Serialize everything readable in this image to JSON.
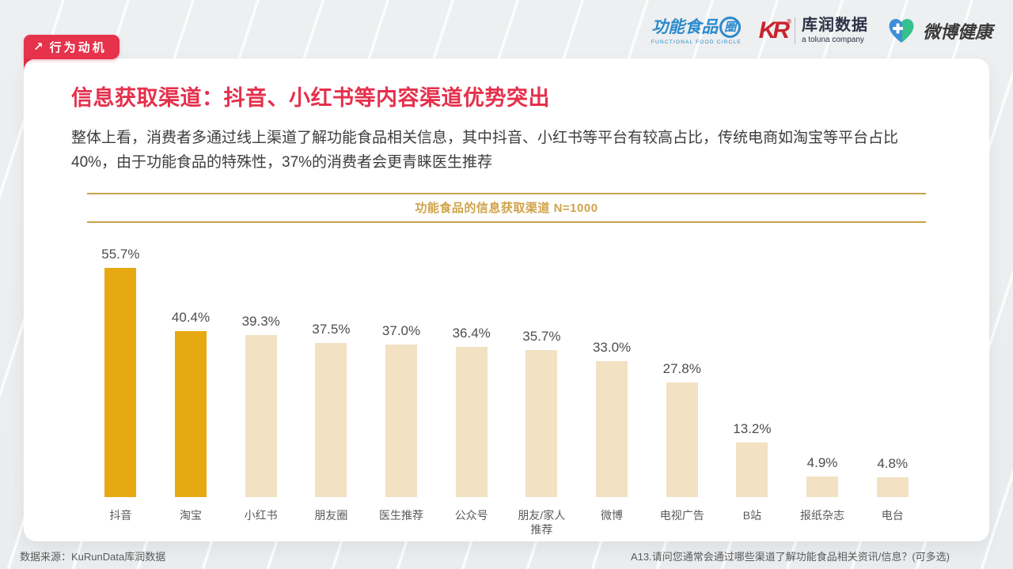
{
  "badge": {
    "icon": "arrow-up-right",
    "label": "行为动机"
  },
  "header_logos": {
    "ffc": {
      "name_main": "功能食品",
      "name_ring": "圈",
      "subtitle": "FUNCTIONAL FOOD CIRCLE"
    },
    "kurun": {
      "mark": "KR",
      "reg": "®",
      "name": "库润数据",
      "subtitle": "a toluna company"
    },
    "weibo_health": {
      "name": "微博健康"
    }
  },
  "title": "信息获取渠道：抖音、小红书等内容渠道优势突出",
  "body": "整体上看，消费者多通过线上渠道了解功能食品相关信息，其中抖音、小红书等平台有较高占比，传统电商如淘宝等平台占比40%，由于功能食品的特殊性，37%的消费者会更青睐医生推荐",
  "footer": {
    "source": "数据来源：KuRunData库润数据",
    "question": "A13.请问您通常会通过哪些渠道了解功能食品相关资讯/信息？(可多选)"
  },
  "chart_data": {
    "type": "bar",
    "title": "功能食品的信息获取渠道 N=1000",
    "categories": [
      "抖音",
      "淘宝",
      "小红书",
      "朋友圈",
      "医生推荐",
      "公众号",
      "朋友/家人推荐",
      "微博",
      "电视广告",
      "B站",
      "报纸杂志",
      "电台"
    ],
    "values": [
      55.7,
      40.4,
      39.3,
      37.5,
      37.0,
      36.4,
      35.7,
      33.0,
      27.8,
      13.2,
      4.9,
      4.8
    ],
    "value_labels": [
      "55.7%",
      "40.4%",
      "39.3%",
      "37.5%",
      "37.0%",
      "36.4%",
      "35.7%",
      "33.0%",
      "27.8%",
      "13.2%",
      "4.9%",
      "4.8%"
    ],
    "highlight_indices": [
      0,
      1
    ],
    "colors": {
      "highlight": "#e7a912",
      "normal": "#f2e1c2"
    },
    "xlabel": "",
    "ylabel": "",
    "ylim": [
      0,
      60
    ],
    "grid": false,
    "legend": false,
    "data_labels": true
  }
}
